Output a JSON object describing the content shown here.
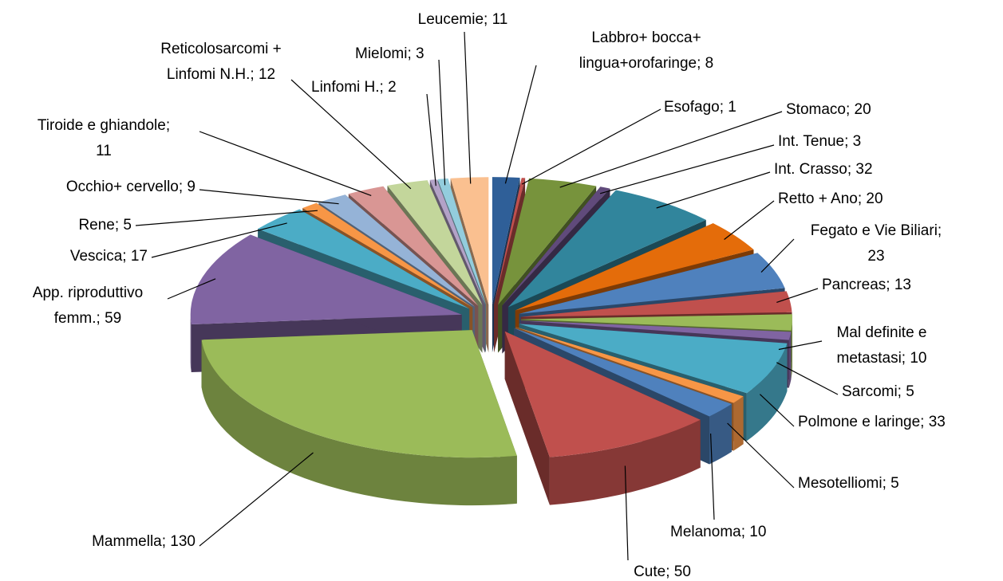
{
  "chart_data": {
    "type": "pie3d",
    "values": [
      8,
      1,
      20,
      3,
      32,
      20,
      23,
      13,
      10,
      5,
      33,
      5,
      10,
      50,
      130,
      59,
      17,
      5,
      9,
      11,
      12,
      2,
      3,
      11
    ],
    "value_labels": [
      "Labbro+ bocca+\nlingua+orofaringe; 8",
      "Esofago; 1",
      "Stomaco; 20",
      "Int. Tenue; 3",
      "Int. Crasso; 32",
      "Retto + Ano; 20",
      "Fegato e Vie Biliari;\n23",
      "Pancreas; 13",
      "Mal definite e\nmetastasi; 10",
      "Sarcomi; 5",
      "Polmone e laringe; 33",
      "Mesotelliomi; 5",
      "Melanoma; 10",
      "Cute; 50",
      "Mammella; 130",
      "App. riproduttivo\nfemm.; 59",
      "Vescica; 17",
      "Rene; 5",
      "Occhio+ cervello; 9",
      "Tiroide e ghiandole;\n11",
      "Reticolosarcomi +\nLinfomi N.H.; 12",
      "Linfomi H.; 2",
      "Mielomi; 3",
      "Leucemie; 11"
    ],
    "colors": [
      "#2F5F98",
      "#C0504D",
      "#77933C",
      "#604A7B",
      "#31859C",
      "#E46C0A",
      "#4F81BD",
      "#C0504D",
      "#9BBB59",
      "#8064A2",
      "#4BACC6",
      "#F79646",
      "#4F81BD",
      "#C0504D",
      "#9BBB59",
      "#8064A2",
      "#4BACC6",
      "#F79646",
      "#95B3D7",
      "#D99694",
      "#C3D69B",
      "#B3A2C7",
      "#93CDDD",
      "#FAC090"
    ]
  }
}
